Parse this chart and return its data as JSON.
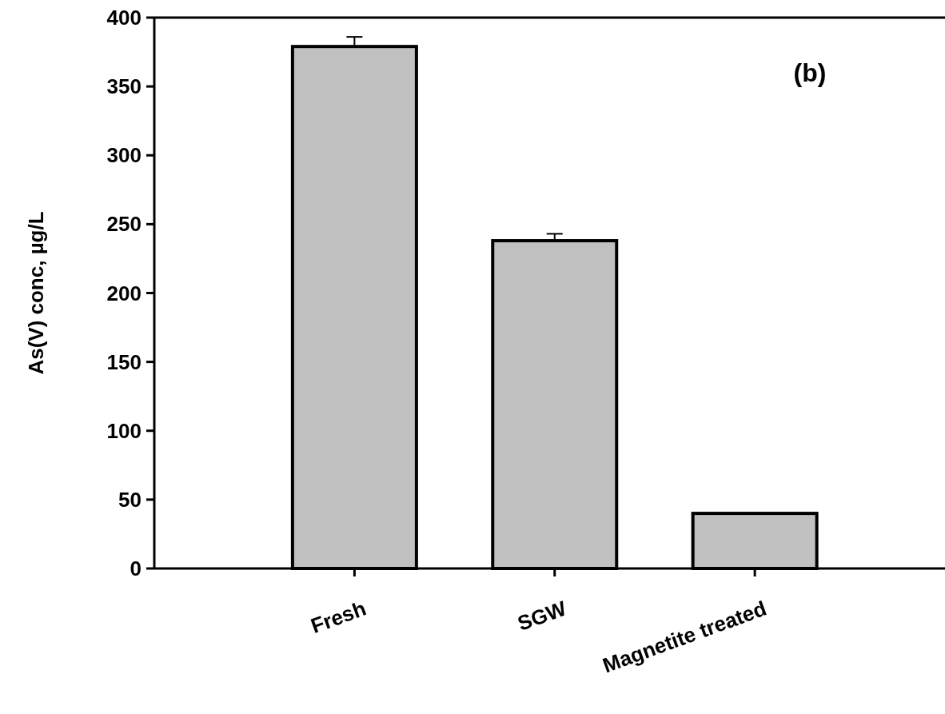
{
  "chart_data": {
    "type": "bar",
    "ylabel": "As(V) conc, µg/L",
    "categories": [
      "Fresh",
      "SGW",
      "Magnetite treated"
    ],
    "values": [
      379,
      238,
      40
    ],
    "errors": [
      7,
      5,
      null
    ],
    "color": "#c0c0c0",
    "ylim": [
      0,
      400
    ],
    "yticks": [
      0,
      50,
      100,
      150,
      200,
      250,
      300,
      350,
      400
    ],
    "grid": false,
    "annotations": [
      "(b)"
    ]
  }
}
